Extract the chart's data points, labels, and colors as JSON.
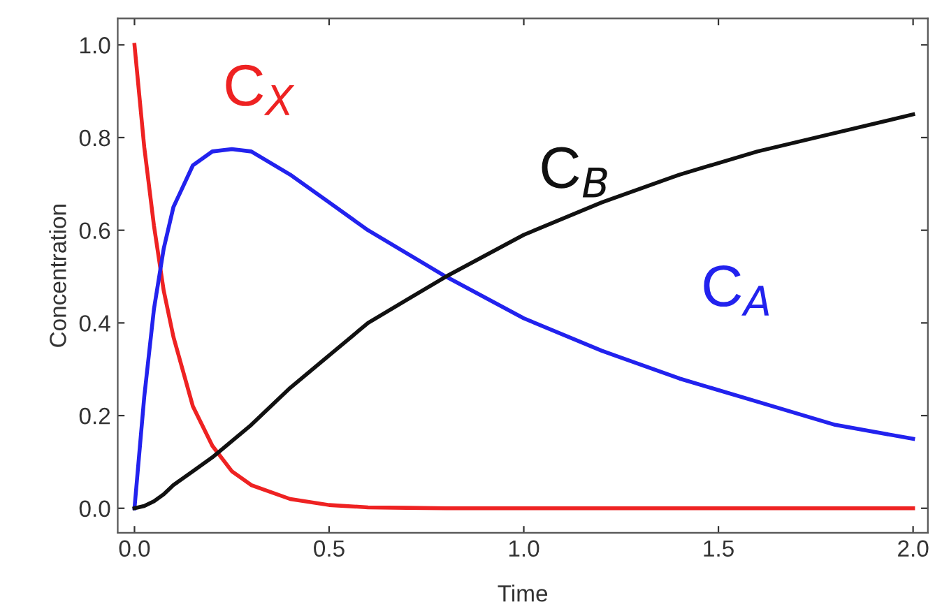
{
  "chart_data": {
    "type": "line",
    "xlabel": "Time",
    "ylabel": "Concentration",
    "xlim": [
      -0.043,
      2.038
    ],
    "ylim": [
      -0.053,
      1.057
    ],
    "xticks": [
      {
        "value": 0,
        "label": "0.0"
      },
      0.5,
      {
        "value": 1,
        "label": "1.0"
      },
      1.5,
      {
        "value": 2,
        "label": "2.0"
      }
    ],
    "yticks": [
      {
        "value": 0,
        "label": "0.0"
      },
      0.2,
      0.4,
      0.6,
      0.8,
      {
        "value": 1,
        "label": "1.0"
      }
    ],
    "grid": false,
    "legend": false,
    "marker": "none",
    "line_style": "solid",
    "x": [
      0,
      0.025,
      0.05,
      0.075,
      0.1,
      0.15,
      0.2,
      0.25,
      0.3,
      0.4,
      0.5,
      0.6,
      0.7,
      0.8,
      1.0,
      1.2,
      1.4,
      1.6,
      1.8,
      2.0
    ],
    "series": [
      {
        "name": "C$_{X}$",
        "color": "#ee2222",
        "values": [
          1.0,
          0.78,
          0.61,
          0.47,
          0.37,
          0.22,
          0.135,
          0.08,
          0.05,
          0.02,
          0.007,
          0.002,
          0.001,
          0,
          0,
          0,
          0,
          0,
          0,
          0
        ]
      },
      {
        "name": "C$_{A}$",
        "color": "#2222ee",
        "values": [
          0,
          0.24,
          0.43,
          0.56,
          0.65,
          0.74,
          0.77,
          0.775,
          0.77,
          0.72,
          0.66,
          0.6,
          0.55,
          0.5,
          0.41,
          0.34,
          0.28,
          0.23,
          0.18,
          0.15
        ]
      },
      {
        "name": "C$_{B}$",
        "color": "#111111",
        "values": [
          0,
          0.005,
          0.015,
          0.03,
          0.05,
          0.08,
          0.11,
          0.145,
          0.18,
          0.26,
          0.33,
          0.4,
          0.45,
          0.5,
          0.59,
          0.66,
          0.72,
          0.77,
          0.81,
          0.85
        ]
      }
    ]
  }
}
